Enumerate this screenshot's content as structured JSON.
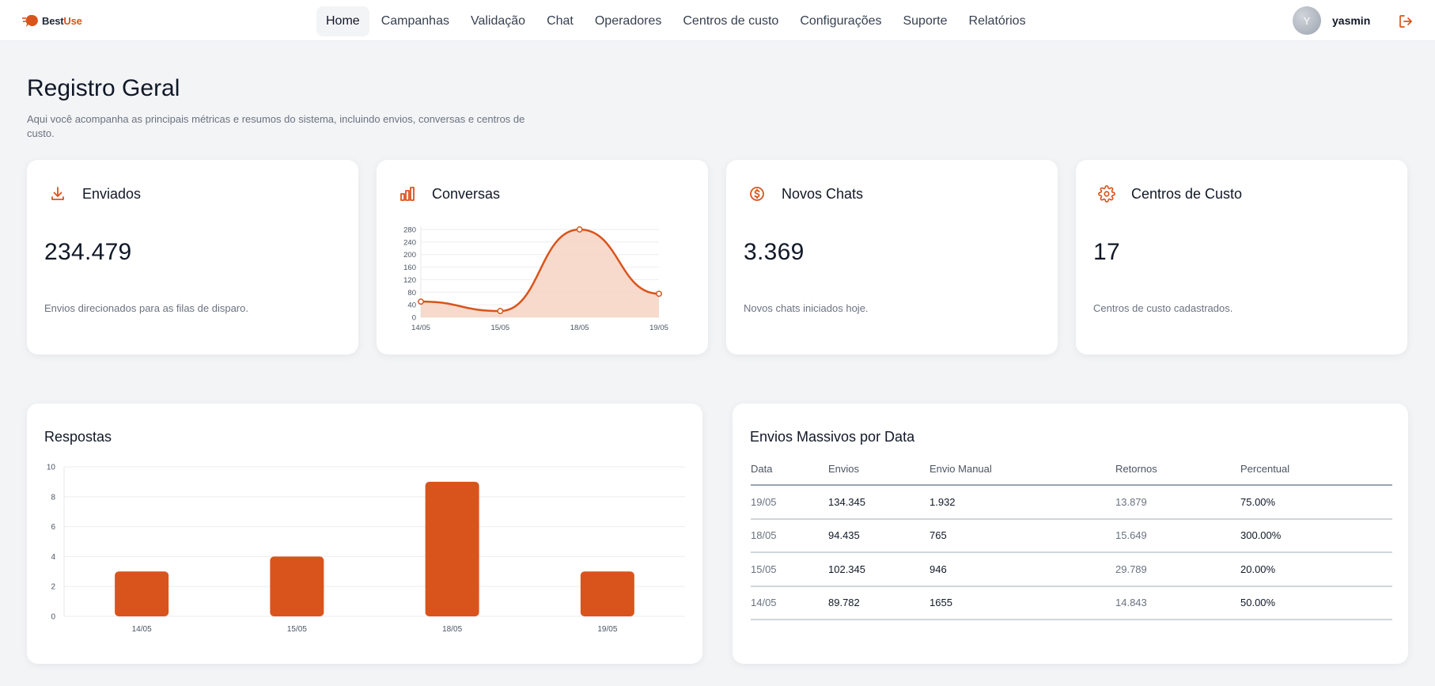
{
  "app": {
    "logo_part1": "Best",
    "logo_part2": "Use",
    "brand_color": "#d9541c"
  },
  "nav": {
    "items": [
      {
        "label": "Home",
        "active": true
      },
      {
        "label": "Campanhas"
      },
      {
        "label": "Validação"
      },
      {
        "label": "Chat"
      },
      {
        "label": "Operadores"
      },
      {
        "label": "Centros de custo"
      },
      {
        "label": "Configurações"
      },
      {
        "label": "Suporte"
      },
      {
        "label": "Relatórios"
      }
    ]
  },
  "user": {
    "avatar_initial": "Y",
    "name": "yasmin",
    "logout_icon": "logout-icon"
  },
  "header": {
    "title": "Registro Geral",
    "subtitle": "Aqui você acompanha as principais métricas e resumos do sistema, incluindo envios, conversas e centros de custo."
  },
  "cards": {
    "enviados": {
      "icon": "download-icon",
      "title": "Enviados",
      "value": "234.479",
      "description": "Envios direcionados para as filas de disparo."
    },
    "conversas": {
      "icon": "bar-chart-icon",
      "title": "Conversas"
    },
    "novos_chats": {
      "icon": "dollar-icon",
      "title": "Novos Chats",
      "value": "3.369",
      "description": "Novos chats iniciados hoje."
    },
    "centros": {
      "icon": "gear-icon",
      "title": "Centros de Custo",
      "value": "17",
      "description": "Centros de custo cadastrados."
    }
  },
  "respostas": {
    "title": "Respostas"
  },
  "envios_table": {
    "title": "Envios Massivos por Data",
    "columns": [
      "Data",
      "Envios",
      "Envio Manual",
      "Retornos",
      "Percentual"
    ],
    "rows": [
      [
        "19/05",
        "134.345",
        "1.932",
        "13.879",
        "75.00%"
      ],
      [
        "18/05",
        "94.435",
        "765",
        "15.649",
        "300.00%"
      ],
      [
        "15/05",
        "102.345",
        "946",
        "29.789",
        "20.00%"
      ],
      [
        "14/05",
        "89.782",
        "1655",
        "14.843",
        "50.00%"
      ]
    ]
  },
  "chart_data": [
    {
      "type": "area",
      "title": "",
      "categories": [
        "14/05",
        "15/05",
        "18/05",
        "19/05"
      ],
      "values": [
        50,
        20,
        300,
        75
      ],
      "ylim": [
        0,
        280
      ],
      "yticks": [
        0,
        40,
        80,
        120,
        160,
        200,
        240,
        280
      ],
      "grid": true,
      "color": "#d9541c",
      "fill": "#f6d4c3"
    },
    {
      "type": "bar",
      "title": "",
      "categories": [
        "14/05",
        "15/05",
        "18/05",
        "19/05"
      ],
      "values": [
        3,
        4,
        9,
        3
      ],
      "ylim": [
        0,
        10
      ],
      "yticks": [
        0,
        2,
        4,
        6,
        8,
        10
      ],
      "grid": true,
      "color": "#d9541c"
    }
  ]
}
